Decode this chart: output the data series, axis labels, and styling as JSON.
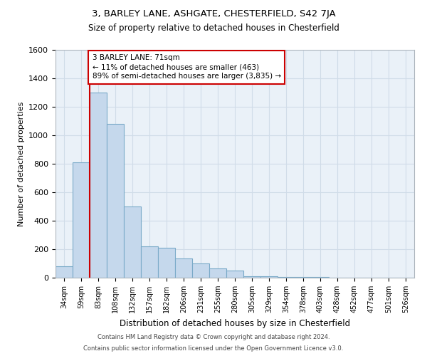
{
  "title": "3, BARLEY LANE, ASHGATE, CHESTERFIELD, S42 7JA",
  "subtitle": "Size of property relative to detached houses in Chesterfield",
  "xlabel": "Distribution of detached houses by size in Chesterfield",
  "ylabel": "Number of detached properties",
  "bar_labels": [
    "34sqm",
    "59sqm",
    "83sqm",
    "108sqm",
    "132sqm",
    "157sqm",
    "182sqm",
    "206sqm",
    "231sqm",
    "255sqm",
    "280sqm",
    "305sqm",
    "329sqm",
    "354sqm",
    "378sqm",
    "403sqm",
    "428sqm",
    "452sqm",
    "477sqm",
    "501sqm",
    "526sqm"
  ],
  "bar_values": [
    80,
    810,
    1300,
    1080,
    500,
    220,
    210,
    135,
    100,
    65,
    50,
    10,
    10,
    5,
    5,
    3,
    2,
    1,
    1,
    1,
    1
  ],
  "bar_color": "#c5d8ec",
  "bar_edge_color": "#7aaac8",
  "annotation_text_lines": [
    "3 BARLEY LANE: 71sqm",
    "← 11% of detached houses are smaller (463)",
    "89% of semi-detached houses are larger (3,835) →"
  ],
  "annotation_box_color": "#ffffff",
  "annotation_box_edge_color": "#cc0000",
  "vline_color": "#cc0000",
  "vline_x_index": 1.5,
  "ylim": [
    0,
    1600
  ],
  "yticks": [
    0,
    200,
    400,
    600,
    800,
    1000,
    1200,
    1400,
    1600
  ],
  "grid_color": "#d0dce8",
  "background_color": "#eaf1f8",
  "footer_line1": "Contains HM Land Registry data © Crown copyright and database right 2024.",
  "footer_line2": "Contains public sector information licensed under the Open Government Licence v3.0."
}
